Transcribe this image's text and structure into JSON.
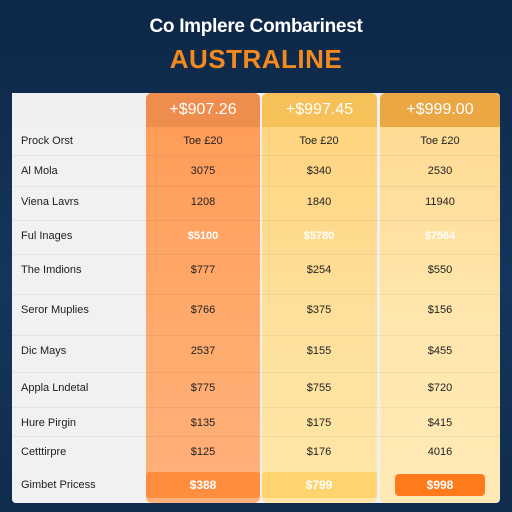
{
  "header": {
    "title": "Co Implere Combarinest",
    "subtitle": "AUSTRALINE"
  },
  "columns": [
    {
      "price": "+$907.26"
    },
    {
      "price": "+$997.45"
    },
    {
      "price": "+$999.00"
    }
  ],
  "rows": [
    {
      "label": "Prock Orst",
      "values": [
        "Toe £20",
        "Toe £20",
        "Toe £20"
      ]
    },
    {
      "label": "Al Mola",
      "values": [
        "3075",
        "$340",
        "2530"
      ]
    },
    {
      "label": "Viena Lavrs",
      "values": [
        "1208",
        "1840",
        "11940"
      ]
    },
    {
      "label": "Ful Inages",
      "values": [
        "$5100",
        "$5780",
        "$7564"
      ]
    },
    {
      "label": "The Imdions",
      "values": [
        "$777",
        "$254",
        "$550"
      ]
    },
    {
      "label": "Seror Muplies",
      "values": [
        "$766",
        "$375",
        "$156"
      ]
    },
    {
      "label": "Dic Mays",
      "values": [
        "2537",
        "$155",
        "$455"
      ]
    },
    {
      "label": "Appla Lndetal",
      "values": [
        "$775",
        "$755",
        "$720"
      ]
    },
    {
      "label": "Hure Pirgin",
      "values": [
        "$135",
        "$175",
        "$415"
      ]
    },
    {
      "label": "Cetttirpre",
      "values": [
        "$125",
        "$176",
        "4016"
      ]
    },
    {
      "label": "Gimbet Pricess",
      "values": [
        "$388",
        "$799",
        "$998"
      ]
    }
  ]
}
